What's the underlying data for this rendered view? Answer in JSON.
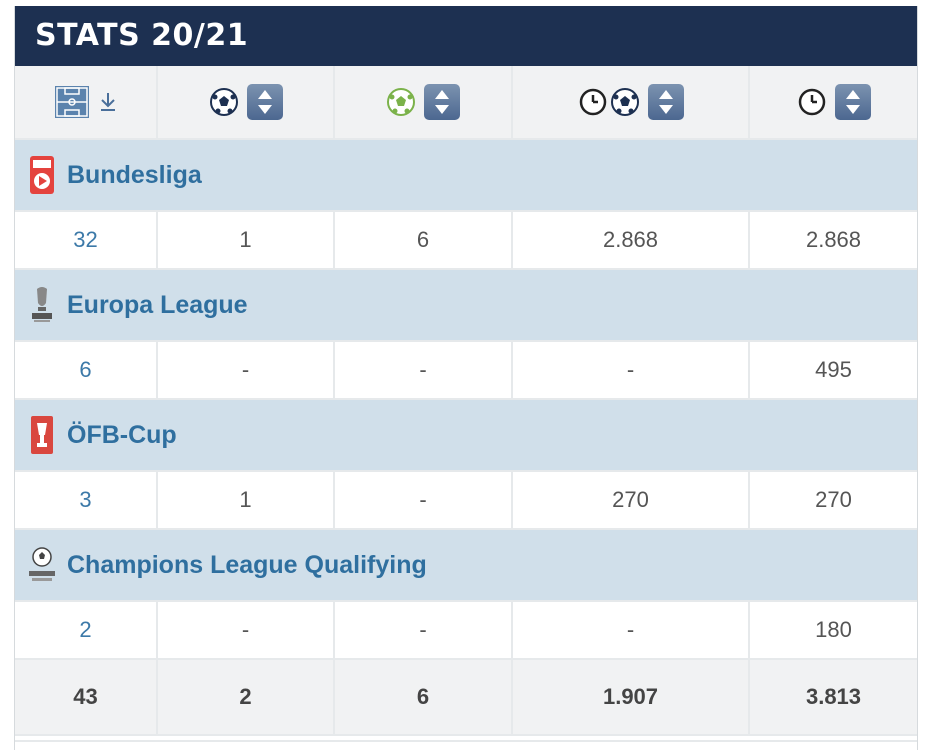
{
  "title": "STATS 20/21",
  "header": {
    "col1_icons": [
      "pitch-icon",
      "sort-down-arrow-icon"
    ],
    "col2_icons": [
      "ball-icon",
      "sort-button-icon"
    ],
    "col3_icons": [
      "assist-ball-icon",
      "sort-button-icon"
    ],
    "col4_icons": [
      "clock-icon",
      "ball-icon",
      "sort-button-icon"
    ],
    "col5_icons": [
      "clock-icon",
      "sort-button-icon"
    ]
  },
  "competitions": [
    {
      "name": "Bundesliga",
      "logo": "bundesliga-logo",
      "stats": {
        "appearances": "32",
        "goals": "1",
        "assists": "6",
        "minutes_per_goal": "2.868",
        "minutes": "2.868"
      }
    },
    {
      "name": "Europa League",
      "logo": "europa-league-logo",
      "stats": {
        "appearances": "6",
        "goals": "-",
        "assists": "-",
        "minutes_per_goal": "-",
        "minutes": "495"
      }
    },
    {
      "name": "ÖFB-Cup",
      "logo": "ofb-cup-logo",
      "stats": {
        "appearances": "3",
        "goals": "1",
        "assists": "-",
        "minutes_per_goal": "270",
        "minutes": "270"
      }
    },
    {
      "name": "Champions League Qualifying",
      "logo": "champions-league-logo",
      "stats": {
        "appearances": "2",
        "goals": "-",
        "assists": "-",
        "minutes_per_goal": "-",
        "minutes": "180"
      }
    }
  ],
  "totals": {
    "appearances": "43",
    "goals": "2",
    "assists": "6",
    "minutes_per_goal": "1.907",
    "minutes": "3.813"
  },
  "colors": {
    "title_bar": "#1d3051",
    "competition_row": "#d0dfea",
    "competition_name": "#2f6f9f",
    "link": "#3c79a8",
    "header_bg": "#f1f2f3"
  }
}
